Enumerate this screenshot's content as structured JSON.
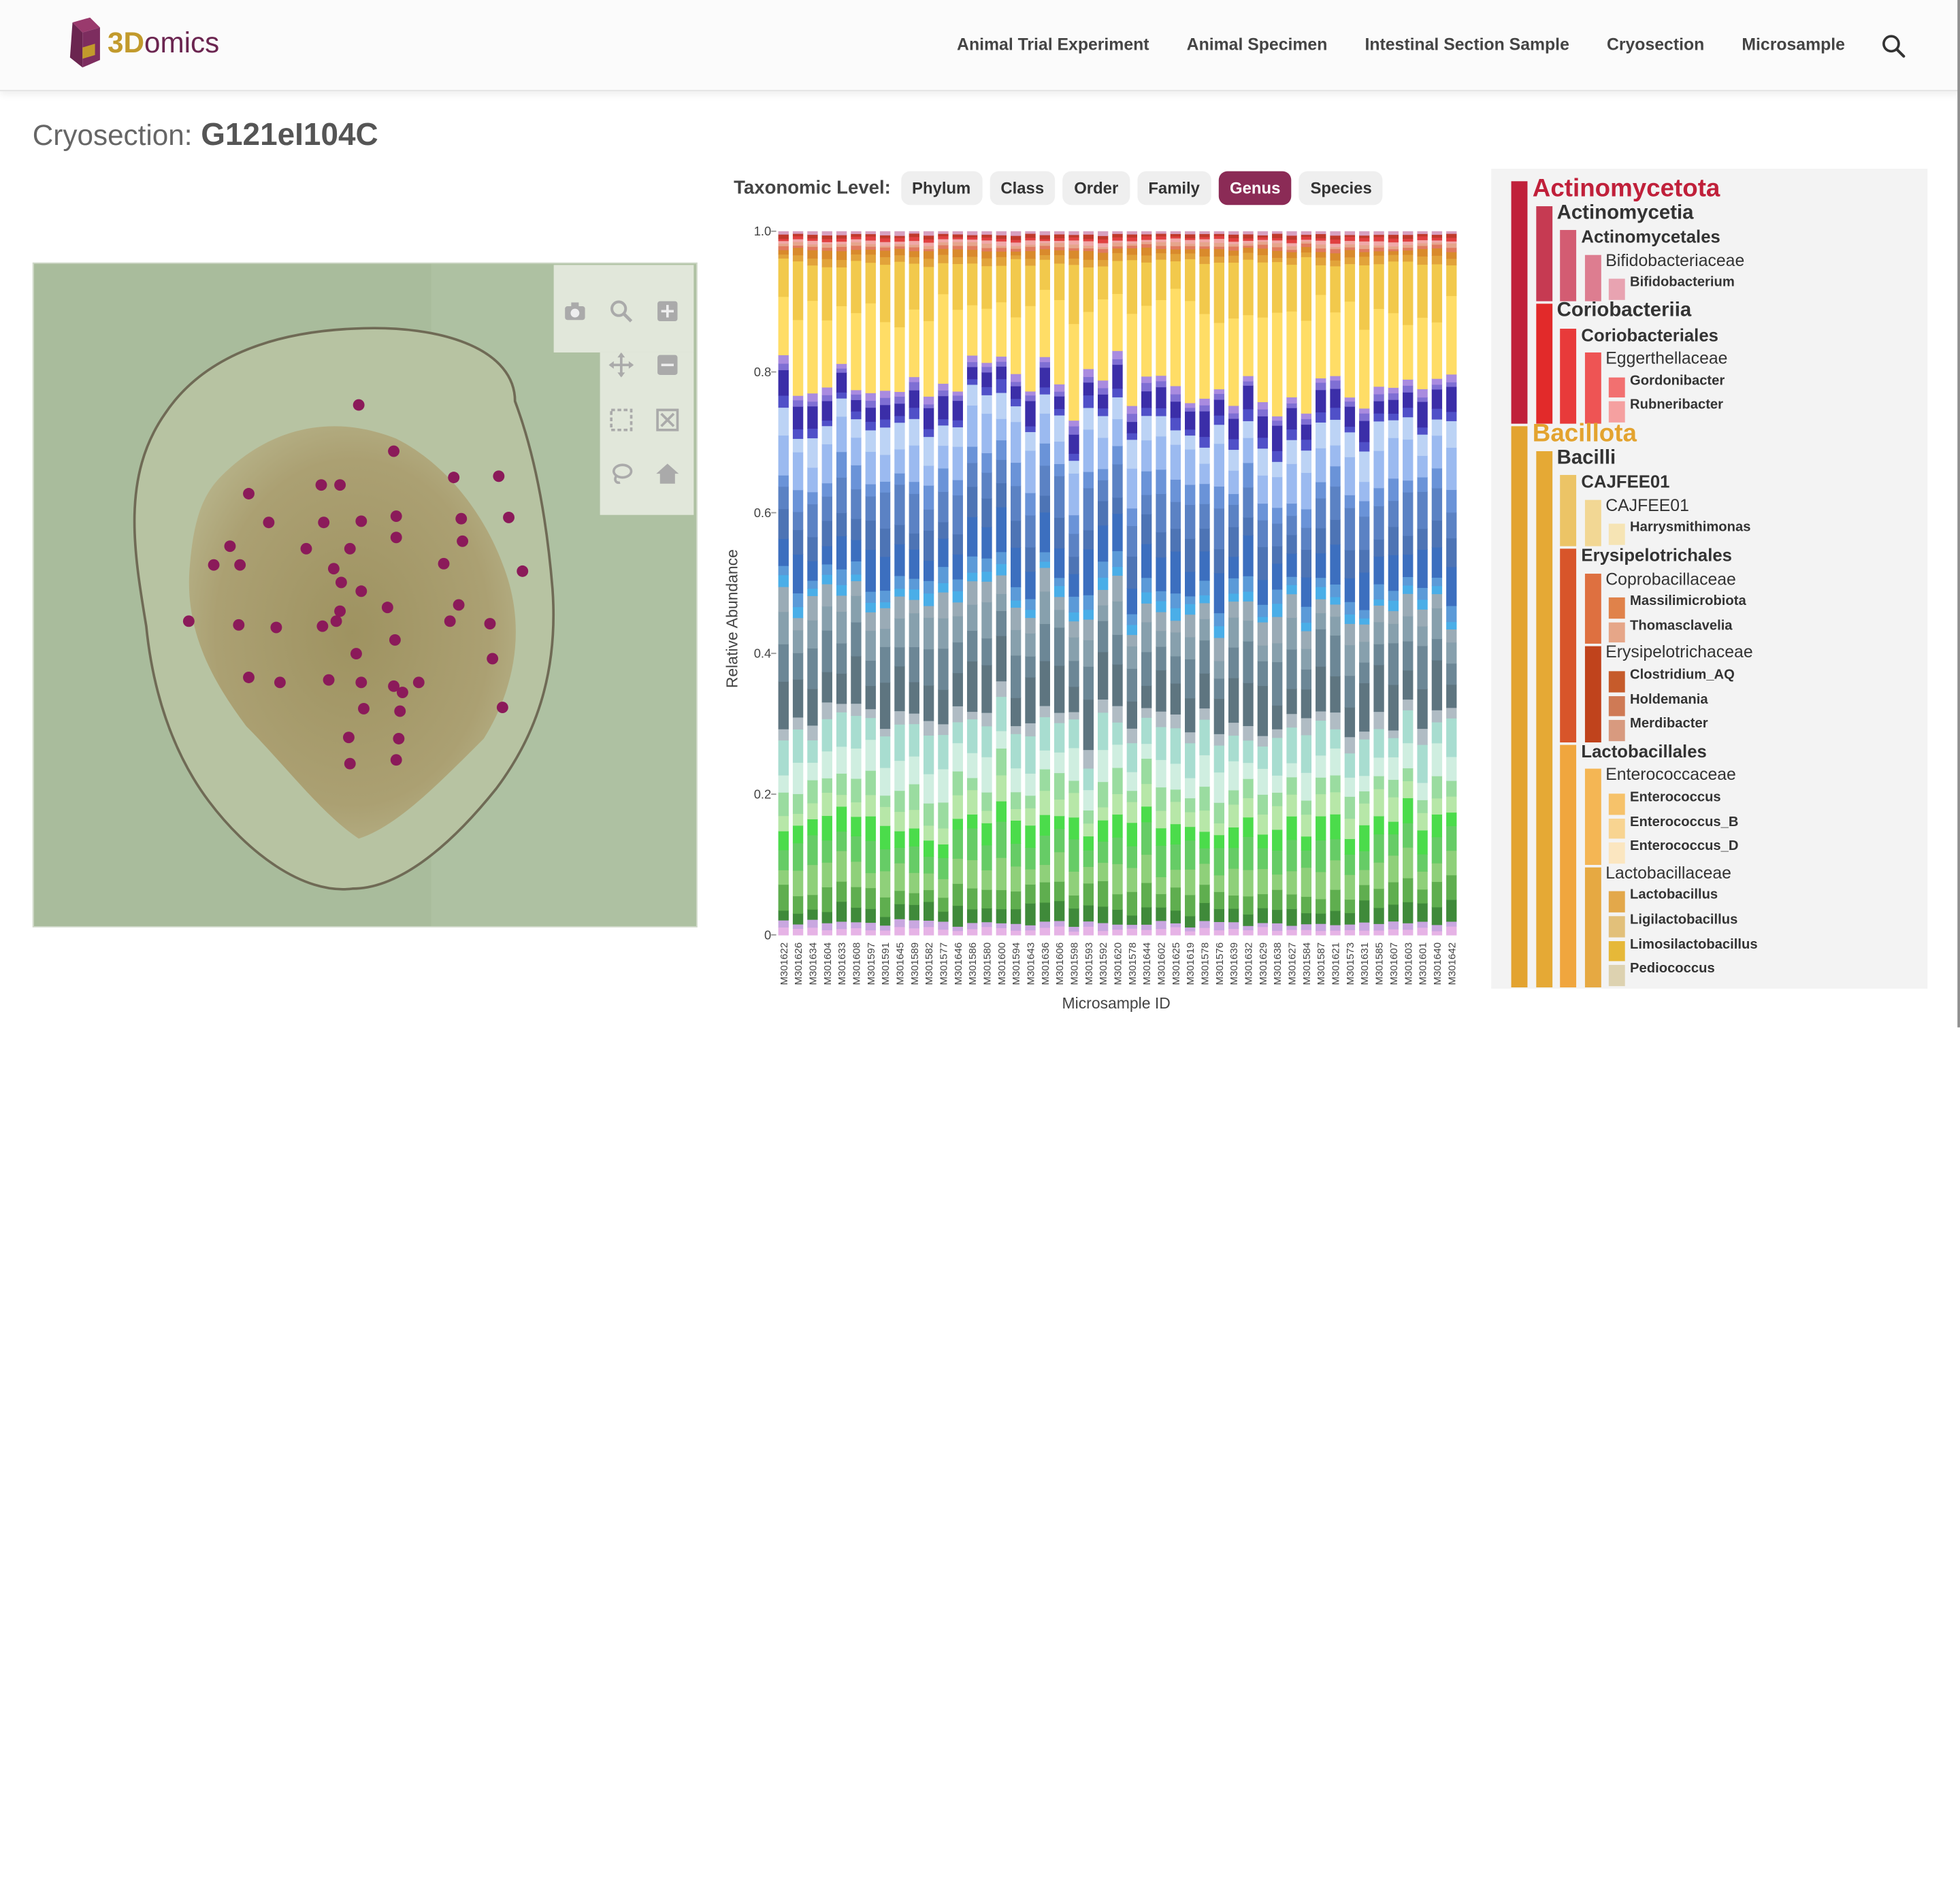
{
  "logo": {
    "text_3d": "3D",
    "text_omics": "omics"
  },
  "nav": {
    "items": [
      "Animal Trial Experiment",
      "Animal Specimen",
      "Intestinal Section Sample",
      "Cryosection",
      "Microsample"
    ],
    "search_icon": "search-icon"
  },
  "page": {
    "title_prefix": "Cryosection:",
    "title_id": "G121eI104C"
  },
  "viewer": {
    "modebar_icons": [
      "camera-icon",
      "zoom-icon",
      "zoom-in-icon",
      "pan-icon",
      "zoom-out-icon",
      "box-select-icon",
      "autoscale-icon",
      "lasso-icon",
      "home-icon"
    ],
    "point_color": "#8b1a5a"
  },
  "taxonomy": {
    "label": "Taxonomic Level:",
    "levels": [
      "Phylum",
      "Class",
      "Order",
      "Family",
      "Genus",
      "Species"
    ],
    "active": "Genus",
    "active_color": "#8b2b56"
  },
  "chart_data": {
    "type": "bar",
    "stacked": true,
    "xlabel": "Microsample ID",
    "ylabel": "Relative Abundance",
    "ylim": [
      0,
      1
    ],
    "yticks": [
      "0",
      "0.2",
      "0.4",
      "0.6",
      "0.8",
      "1.0"
    ],
    "categories": [
      "M301622",
      "M301626",
      "M301634",
      "M301604",
      "M301633",
      "M301608",
      "M301597",
      "M301591",
      "M301645",
      "M301589",
      "M301582",
      "M301577",
      "M301646",
      "M301586",
      "M301580",
      "M301600",
      "M301594",
      "M301643",
      "M301636",
      "M301606",
      "M301598",
      "M301593",
      "M301592",
      "M301620",
      "M301578",
      "M301644",
      "M301602",
      "M301625",
      "M301619",
      "M301578",
      "M301576",
      "M301639",
      "M301632",
      "M301629",
      "M301638",
      "M301627",
      "M301584",
      "M301587",
      "M301621",
      "M301573",
      "M301631",
      "M301585",
      "M301607",
      "M301603",
      "M301601",
      "M301640",
      "M301642"
    ],
    "genus_colors": [
      "#e6b3e6",
      "#c9a7e0",
      "#3f8a3a",
      "#5fae4f",
      "#8fd07a",
      "#66cc66",
      "#4bdc4b",
      "#b7e7a8",
      "#9adca0",
      "#cfeee0",
      "#a8ddd0",
      "#b0bcc4",
      "#5e7580",
      "#6c8796",
      "#87a0ad",
      "#9aabb6",
      "#4aaee8",
      "#5b9ad8",
      "#3c6fbf",
      "#4d74b5",
      "#5b82c4",
      "#6a93d8",
      "#9bbaf0",
      "#bcd3f5",
      "#5050c8",
      "#3b2ea8",
      "#7f6fd4",
      "#a98be0",
      "#ffdd66",
      "#f2c94c",
      "#e2a33a",
      "#d98a2c",
      "#e07a5f",
      "#e6a58c",
      "#f0a8a8",
      "#e04040",
      "#c0392b",
      "#d7a0c0"
    ],
    "series_note": "",
    "abundance_bands": [
      0.01,
      0.01,
      0.025,
      0.03,
      0.035,
      0.04,
      0.03,
      0.03,
      0.03,
      0.04,
      0.045,
      0.02,
      0.06,
      0.05,
      0.04,
      0.03,
      0.015,
      0.02,
      0.05,
      0.04,
      0.05,
      0.03,
      0.05,
      0.035,
      0.015,
      0.03,
      0.01,
      0.01,
      0.12,
      0.075,
      0.01,
      0.01,
      0.005,
      0.005,
      0.005,
      0.005,
      0.005,
      0.005
    ]
  },
  "tree": {
    "nodes": [
      {
        "level": 0,
        "text": "Actinomycetota",
        "color": "#c0203a"
      },
      {
        "level": 1,
        "text": "Actinomycetia",
        "color": "#c63a52"
      },
      {
        "level": 2,
        "text": "Actinomycetales",
        "color": "#d35c72"
      },
      {
        "level": 3,
        "text": "Bifidobacteriaceae",
        "color": "#dd7d90"
      },
      {
        "level": 4,
        "text": "Bifidobacterium",
        "color": "#e8a3b1"
      },
      {
        "level": 1,
        "text": "Coriobacteriia",
        "color": "#e22a2a"
      },
      {
        "level": 2,
        "text": "Coriobacteriales",
        "color": "#e83a3a"
      },
      {
        "level": 3,
        "text": "Eggerthellaceae",
        "color": "#ee5454"
      },
      {
        "level": 4,
        "text": "Gordonibacter",
        "color": "#f27070"
      },
      {
        "level": 4,
        "text": "Rubneribacter",
        "color": "#f5a0a0"
      },
      {
        "level": 0,
        "text": "Bacillota",
        "color": "#e3a32f"
      },
      {
        "level": 1,
        "text": "Bacilli",
        "color": "#e5a935"
      },
      {
        "level": 2,
        "text": "CAJFEE01",
        "color": "#ecc466"
      },
      {
        "level": 3,
        "text": "CAJFEE01",
        "color": "#f2d794"
      },
      {
        "level": 4,
        "text": "Harrysmithimonas",
        "color": "#f6e4b4"
      },
      {
        "level": 2,
        "text": "Erysipelotrichales",
        "color": "#d8552a"
      },
      {
        "level": 3,
        "text": "Coprobacillaceae",
        "color": "#de7040"
      },
      {
        "level": 4,
        "text": "Massilimicrobiota",
        "color": "#e0824a"
      },
      {
        "level": 4,
        "text": "Thomasclavelia",
        "color": "#e6a688"
      },
      {
        "level": 3,
        "text": "Erysipelotrichaceae",
        "color": "#c0431c"
      },
      {
        "level": 4,
        "text": "Clostridium_AQ",
        "color": "#c65b2b"
      },
      {
        "level": 4,
        "text": "Holdemania",
        "color": "#cf7a55"
      },
      {
        "level": 4,
        "text": "Merdibacter",
        "color": "#d89a7f"
      },
      {
        "level": 2,
        "text": "Lactobacillales",
        "color": "#f0a63e"
      },
      {
        "level": 3,
        "text": "Enterococcaceae",
        "color": "#f4b654"
      },
      {
        "level": 4,
        "text": "Enterococcus",
        "color": "#f6c26a"
      },
      {
        "level": 4,
        "text": "Enterococcus_B",
        "color": "#f8d491"
      },
      {
        "level": 4,
        "text": "Enterococcus_D",
        "color": "#fbe6c0"
      },
      {
        "level": 3,
        "text": "Lactobacillaceae",
        "color": "#e6a942"
      },
      {
        "level": 4,
        "text": "Lactobacillus",
        "color": "#e3a84a"
      },
      {
        "level": 4,
        "text": "Ligilactobacillus",
        "color": "#e2c07a"
      },
      {
        "level": 4,
        "text": "Limosilactobacillus",
        "color": "#e6b838"
      },
      {
        "level": 4,
        "text": "Pediococcus",
        "color": "#ddd2b0"
      }
    ]
  }
}
